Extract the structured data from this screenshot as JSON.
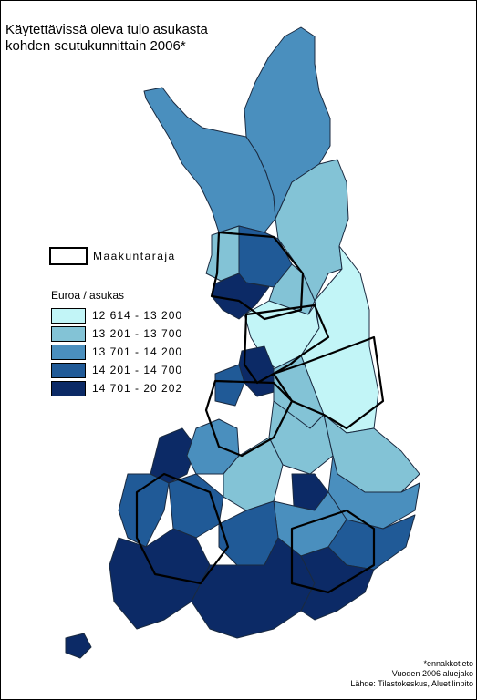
{
  "title": {
    "line1": "Käytettävissä oleva tulo asukasta",
    "line2": "kohden seutukunnittain 2006*"
  },
  "legend": {
    "border_label": "Maakuntaraja",
    "unit_label": "Euroa / asukas",
    "classes": [
      {
        "label": "12 614 - 13 200",
        "color": "#c2f5f7"
      },
      {
        "label": "13 201 - 13 700",
        "color": "#83c3d6"
      },
      {
        "label": "13 701 - 14 200",
        "color": "#4a8fbe"
      },
      {
        "label": "14 201 - 14 700",
        "color": "#205a97"
      },
      {
        "label": "14 701 - 20 202",
        "color": "#0c2a66"
      }
    ]
  },
  "footnote": {
    "line1": "*ennakkotieto",
    "line2": "Vuoden 2006 aluejako",
    "line3": "Lähde: Tilastokeskus, Aluetilinpito"
  },
  "regions": [
    {
      "name": "lapland-northwest",
      "class": 2
    },
    {
      "name": "lapland-north",
      "class": 2
    },
    {
      "name": "lapland-east",
      "class": 1
    },
    {
      "name": "lapland-west-small",
      "class": 1
    },
    {
      "name": "rovaniemi",
      "class": 3
    },
    {
      "name": "kemi-tornio",
      "class": 4
    },
    {
      "name": "koillismaa",
      "class": 1
    },
    {
      "name": "kainuu",
      "class": 0
    },
    {
      "name": "oulu",
      "class": 4
    },
    {
      "name": "oulu-south",
      "class": 3
    },
    {
      "name": "kainuu-east",
      "class": 0
    },
    {
      "name": "pohjanmaa-central",
      "class": 1
    },
    {
      "name": "savo-north",
      "class": 1
    },
    {
      "name": "karelia-north",
      "class": 1
    },
    {
      "name": "vaasa-coast",
      "class": 4
    },
    {
      "name": "ostrobothnia",
      "class": 2
    },
    {
      "name": "central-finland",
      "class": 1
    },
    {
      "name": "savo-south",
      "class": 2
    },
    {
      "name": "jyvaskyla",
      "class": 4
    },
    {
      "name": "satakunta",
      "class": 3
    },
    {
      "name": "pirkanmaa",
      "class": 3
    },
    {
      "name": "karelia-south",
      "class": 2
    },
    {
      "name": "kymenlaakso",
      "class": 3
    },
    {
      "name": "paijat-hame",
      "class": 3
    },
    {
      "name": "varsinais-suomi",
      "class": 4
    },
    {
      "name": "uusimaa",
      "class": 4
    },
    {
      "name": "ita-uusimaa",
      "class": 4
    },
    {
      "name": "aland",
      "class": 4
    }
  ]
}
